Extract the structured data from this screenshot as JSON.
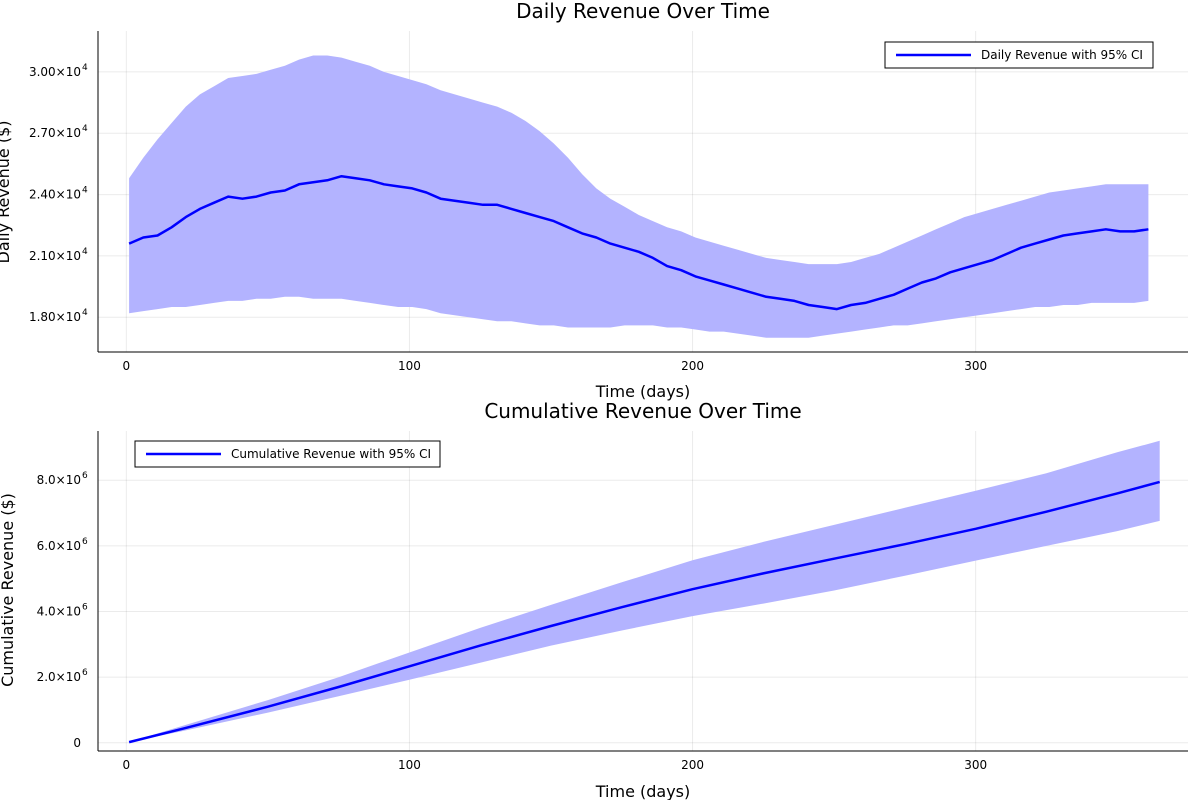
{
  "colors": {
    "line": "#0000ff",
    "band": "#b3b3ff"
  },
  "chart_data": [
    {
      "type": "line",
      "title": "Daily Revenue Over Time",
      "xlabel": "Time (days)",
      "ylabel": "Daily Revenue ($)",
      "xlim": [
        -10,
        375
      ],
      "ylim": [
        16300,
        32000
      ],
      "x_ticks": [
        0,
        100,
        200,
        300
      ],
      "x_tick_labels": [
        "0",
        "100",
        "200",
        "300"
      ],
      "y_ticks": [
        18000,
        21000,
        24000,
        27000,
        30000
      ],
      "y_tick_labels": [
        {
          "mantissa": "1.80×10",
          "exp": "4"
        },
        {
          "mantissa": "2.10×10",
          "exp": "4"
        },
        {
          "mantissa": "2.40×10",
          "exp": "4"
        },
        {
          "mantissa": "2.70×10",
          "exp": "4"
        },
        {
          "mantissa": "3.00×10",
          "exp": "4"
        }
      ],
      "grid": true,
      "legend_position": "top-right",
      "series": [
        {
          "name": "Daily Revenue with 95% CI",
          "x_start": 1,
          "x_step": 5,
          "values": [
            21600,
            21900,
            22000,
            22400,
            22900,
            23300,
            23600,
            23900,
            23800,
            23900,
            24100,
            24200,
            24500,
            24600,
            24700,
            24900,
            24800,
            24700,
            24500,
            24400,
            24300,
            24100,
            23800,
            23700,
            23600,
            23500,
            23500,
            23300,
            23100,
            22900,
            22700,
            22400,
            22100,
            21900,
            21600,
            21400,
            21200,
            20900,
            20500,
            20300,
            20000,
            19800,
            19600,
            19400,
            19200,
            19000,
            18900,
            18800,
            18600,
            18500,
            18400,
            18600,
            18700,
            18900,
            19100,
            19400,
            19700,
            19900,
            20200,
            20400,
            20600,
            20800,
            21100,
            21400,
            21600,
            21800,
            22000,
            22100,
            22200,
            22300,
            22200,
            22200,
            22300
          ],
          "ci_lower": [
            18200,
            18300,
            18400,
            18500,
            18500,
            18600,
            18700,
            18800,
            18800,
            18900,
            18900,
            19000,
            19000,
            18900,
            18900,
            18900,
            18800,
            18700,
            18600,
            18500,
            18500,
            18400,
            18200,
            18100,
            18000,
            17900,
            17800,
            17800,
            17700,
            17600,
            17600,
            17500,
            17500,
            17500,
            17500,
            17600,
            17600,
            17600,
            17500,
            17500,
            17400,
            17300,
            17300,
            17200,
            17100,
            17000,
            17000,
            17000,
            17000,
            17100,
            17200,
            17300,
            17400,
            17500,
            17600,
            17600,
            17700,
            17800,
            17900,
            18000,
            18100,
            18200,
            18300,
            18400,
            18500,
            18500,
            18600,
            18600,
            18700,
            18700,
            18700,
            18700,
            18800
          ],
          "ci_upper": [
            24800,
            25800,
            26700,
            27500,
            28300,
            28900,
            29300,
            29700,
            29800,
            29900,
            30100,
            30300,
            30600,
            30800,
            30800,
            30700,
            30500,
            30300,
            30000,
            29800,
            29600,
            29400,
            29100,
            28900,
            28700,
            28500,
            28300,
            28000,
            27600,
            27100,
            26500,
            25800,
            25000,
            24300,
            23800,
            23400,
            23000,
            22700,
            22400,
            22200,
            21900,
            21700,
            21500,
            21300,
            21100,
            20900,
            20800,
            20700,
            20600,
            20600,
            20600,
            20700,
            20900,
            21100,
            21400,
            21700,
            22000,
            22300,
            22600,
            22900,
            23100,
            23300,
            23500,
            23700,
            23900,
            24100,
            24200,
            24300,
            24400,
            24500,
            24500,
            24500,
            24500
          ]
        }
      ]
    },
    {
      "type": "line",
      "title": "Cumulative Revenue Over Time",
      "xlabel": "Time (days)",
      "ylabel": "Cumulative Revenue ($)",
      "xlim": [
        -10,
        375
      ],
      "ylim": [
        -250000,
        9500000
      ],
      "x_ticks": [
        0,
        100,
        200,
        300
      ],
      "x_tick_labels": [
        "0",
        "100",
        "200",
        "300"
      ],
      "y_ticks": [
        0,
        2000000,
        4000000,
        6000000,
        8000000
      ],
      "y_tick_labels": [
        {
          "mantissa": "0",
          "exp": ""
        },
        {
          "mantissa": "2.0×10",
          "exp": "6"
        },
        {
          "mantissa": "4.0×10",
          "exp": "6"
        },
        {
          "mantissa": "6.0×10",
          "exp": "6"
        },
        {
          "mantissa": "8.0×10",
          "exp": "6"
        }
      ],
      "grid": true,
      "legend_position": "top-left",
      "series": [
        {
          "name": "Cumulative Revenue with 95% CI",
          "x": [
            1,
            20,
            50,
            75,
            100,
            125,
            150,
            175,
            200,
            225,
            250,
            275,
            300,
            325,
            350,
            365
          ],
          "values": [
            20000,
            430000,
            1100000,
            1700000,
            2330000,
            2960000,
            3560000,
            4130000,
            4680000,
            5160000,
            5610000,
            6050000,
            6520000,
            7040000,
            7600000,
            7950000
          ],
          "ci_lower": [
            20000,
            360000,
            920000,
            1420000,
            1920000,
            2440000,
            2960000,
            3420000,
            3860000,
            4240000,
            4640000,
            5090000,
            5550000,
            6000000,
            6450000,
            6760000
          ],
          "ci_upper": [
            25000,
            520000,
            1300000,
            2000000,
            2750000,
            3500000,
            4200000,
            4890000,
            5560000,
            6120000,
            6640000,
            7160000,
            7680000,
            8210000,
            8850000,
            9200000
          ]
        }
      ]
    }
  ]
}
